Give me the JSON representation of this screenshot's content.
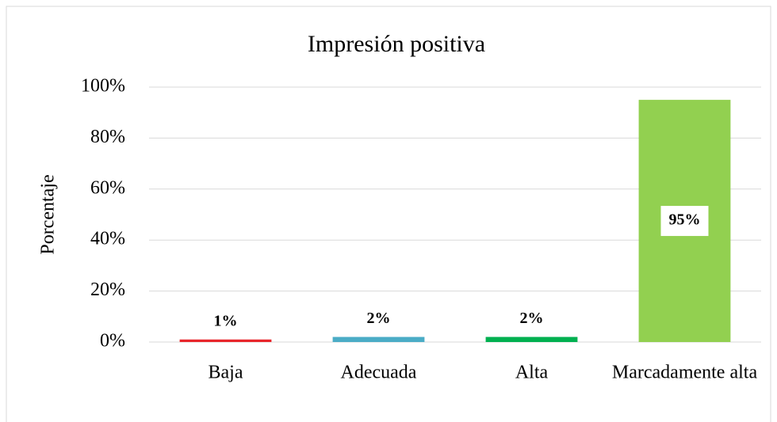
{
  "chart_data": {
    "type": "bar",
    "title": "Impresión positiva",
    "y_label": "Porcentaje",
    "categories": [
      "Baja",
      "Adecuada",
      "Alta",
      "Marcadamente alta"
    ],
    "values": [
      1,
      2,
      2,
      95
    ],
    "value_labels": [
      "1%",
      "2%",
      "2%",
      "95%"
    ],
    "colors": [
      "#e8262b",
      "#4bacc6",
      "#00b050",
      "#92d050"
    ],
    "ylim": [
      0,
      100
    ],
    "yticks": [
      {
        "value": 0,
        "label": "0%"
      },
      {
        "value": 20,
        "label": "20%"
      },
      {
        "value": 40,
        "label": "40%"
      },
      {
        "value": 60,
        "label": "60%"
      },
      {
        "value": 80,
        "label": "80%"
      },
      {
        "value": 100,
        "label": "100%"
      }
    ],
    "grid": true
  }
}
